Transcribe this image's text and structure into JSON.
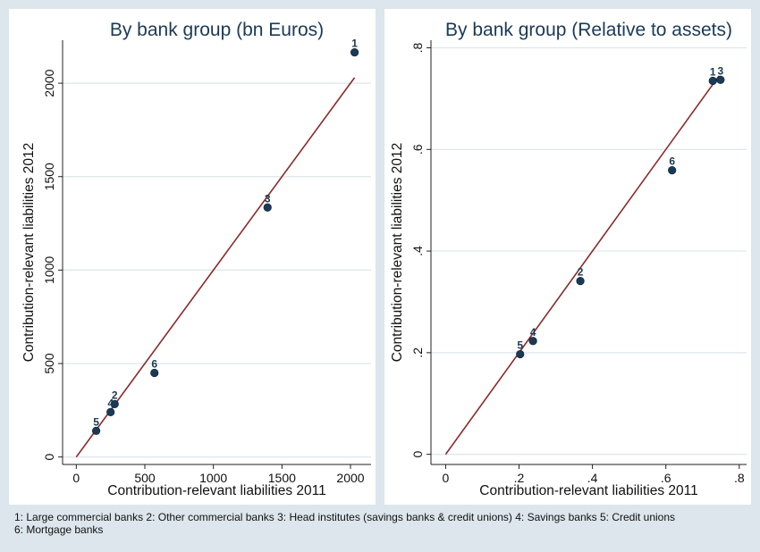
{
  "chart_data": [
    {
      "type": "scatter",
      "title": "By bank group (bn Euros)",
      "xlabel": "Contribution-relevant liabilities 2011",
      "ylabel": "Contribution-relevant liabilities 2012",
      "xlim": [
        -100,
        2150
      ],
      "ylim": [
        -40,
        2230
      ],
      "xticks": [
        0,
        500,
        1000,
        1500,
        2000
      ],
      "xtick_labels": [
        "0",
        "500",
        "1000",
        "1500",
        "2000"
      ],
      "yticks": [
        0,
        500,
        1000,
        1500,
        2000
      ],
      "ytick_labels": [
        "0",
        "500",
        "1000",
        "1500",
        "2000"
      ],
      "grid": "horizontal",
      "points": [
        {
          "label": "1",
          "x": 2030,
          "y": 2165
        },
        {
          "label": "2",
          "x": 280,
          "y": 283
        },
        {
          "label": "3",
          "x": 1395,
          "y": 1335
        },
        {
          "label": "4",
          "x": 250,
          "y": 240
        },
        {
          "label": "5",
          "x": 145,
          "y": 140
        },
        {
          "label": "6",
          "x": 570,
          "y": 450
        }
      ],
      "fit_line": {
        "x": [
          0,
          2030
        ],
        "y": [
          0,
          2030
        ]
      },
      "colors": {
        "marker": "#1a3a56",
        "line": "#8b2a2a",
        "grid": "#dde5ea"
      }
    },
    {
      "type": "scatter",
      "title": "By bank group (Relative to assets)",
      "xlabel": "Contribution-relevant liabilities 2011",
      "ylabel": "Contribution-relevant liabilities 2012",
      "xlim": [
        -0.04,
        0.82
      ],
      "ylim": [
        -0.02,
        0.815
      ],
      "xticks": [
        0,
        0.2,
        0.4,
        0.6,
        0.8
      ],
      "xtick_labels": [
        "0",
        ".2",
        ".4",
        ".6",
        ".8"
      ],
      "yticks": [
        0,
        0.2,
        0.4,
        0.6,
        0.8
      ],
      "ytick_labels": [
        "0",
        ".2",
        ".4",
        ".6",
        ".8"
      ],
      "grid": "horizontal",
      "points": [
        {
          "label": "1",
          "x": 0.728,
          "y": 0.735
        },
        {
          "label": "2",
          "x": 0.367,
          "y": 0.341
        },
        {
          "label": "3",
          "x": 0.749,
          "y": 0.737
        },
        {
          "label": "4",
          "x": 0.238,
          "y": 0.223
        },
        {
          "label": "5",
          "x": 0.203,
          "y": 0.197
        },
        {
          "label": "6",
          "x": 0.617,
          "y": 0.559
        }
      ],
      "fit_line": {
        "x": [
          0,
          0.745
        ],
        "y": [
          0,
          0.745
        ]
      },
      "colors": {
        "marker": "#1a3a56",
        "line": "#8b2a2a",
        "grid": "#dde5ea"
      }
    }
  ],
  "note": {
    "line1": "1: Large commercial banks 2: Other commercial banks 3: Head institutes (savings banks & credit unions) 4: Savings banks 5: Credit unions",
    "line2": "6: Mortgage banks"
  }
}
